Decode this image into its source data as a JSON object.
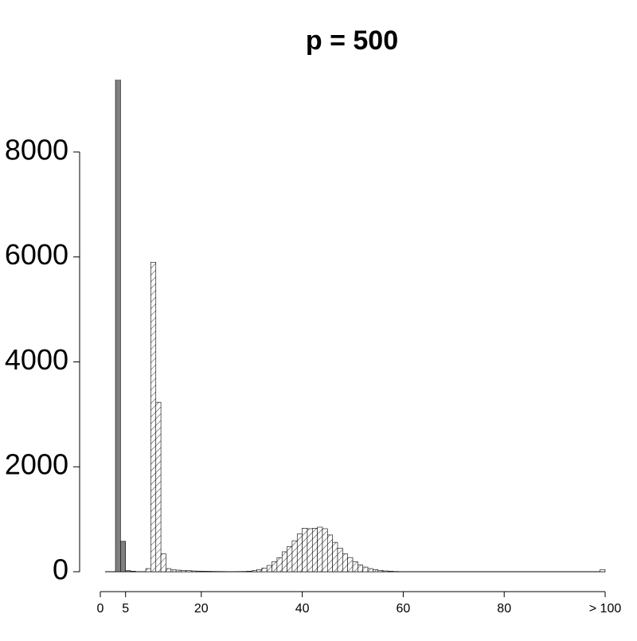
{
  "chart_data": {
    "type": "histogram",
    "title": "p = 500",
    "bins": [
      0,
      1,
      2,
      3,
      4,
      5,
      6,
      7,
      8,
      9,
      10,
      11,
      12,
      13,
      14,
      15,
      16,
      17,
      18,
      19,
      20,
      21,
      22,
      23,
      24,
      25,
      26,
      27,
      28,
      29,
      30,
      31,
      32,
      33,
      34,
      35,
      36,
      37,
      38,
      39,
      40,
      41,
      42,
      43,
      44,
      45,
      46,
      47,
      48,
      49,
      50,
      51,
      52,
      53,
      54,
      55,
      56,
      57,
      58,
      59,
      60,
      61,
      62,
      63,
      64,
      65,
      66,
      67,
      68,
      69,
      70,
      71,
      72,
      73,
      74,
      75,
      76,
      77,
      78,
      79,
      80,
      81,
      82,
      83,
      84,
      85,
      86,
      87,
      88,
      89,
      90,
      91,
      92,
      93,
      94,
      95,
      96,
      97,
      98,
      99,
      100
    ],
    "series": [
      {
        "color": "#808080",
        "hatch": false,
        "values": [
          0,
          0,
          0,
          9500,
          580,
          20,
          10,
          0,
          0,
          0,
          0,
          0,
          0,
          0,
          0,
          0,
          0,
          0,
          0,
          0,
          0,
          0,
          0,
          0,
          0,
          0,
          0,
          0,
          0,
          0,
          0,
          0,
          0,
          0,
          0,
          0,
          0,
          0,
          0,
          0,
          0,
          0,
          0,
          0,
          0,
          0,
          0,
          0,
          0,
          0,
          0,
          0,
          0,
          0,
          0,
          0,
          0,
          0,
          0,
          0,
          0,
          0,
          0,
          0,
          0,
          0,
          0,
          0,
          0,
          0,
          0,
          0,
          0,
          0,
          0,
          0,
          0,
          0,
          0,
          0,
          0,
          0,
          0,
          0,
          0,
          0,
          0,
          0,
          0,
          0,
          0,
          0,
          0,
          0,
          0,
          0,
          0,
          0,
          0,
          0
        ]
      },
      {
        "color": "#ffffff",
        "hatch": true,
        "values": [
          0,
          0,
          0,
          0,
          0,
          0,
          0,
          0,
          0,
          60,
          5900,
          3230,
          340,
          60,
          35,
          30,
          25,
          20,
          15,
          12,
          10,
          8,
          6,
          5,
          4,
          3,
          3,
          4,
          5,
          10,
          20,
          40,
          70,
          120,
          190,
          270,
          380,
          480,
          590,
          720,
          830,
          820,
          830,
          850,
          820,
          700,
          560,
          450,
          340,
          270,
          190,
          130,
          90,
          60,
          40,
          25,
          15,
          10,
          5,
          3,
          2,
          0,
          0,
          0,
          0,
          0,
          0,
          0,
          0,
          0,
          0,
          0,
          0,
          0,
          0,
          0,
          0,
          0,
          0,
          0,
          0,
          0,
          0,
          0,
          0,
          0,
          0,
          0,
          0,
          0,
          0,
          0,
          0,
          0,
          0,
          0,
          0,
          0,
          0,
          40
        ]
      }
    ],
    "xlim": [
      0,
      100
    ],
    "ylim": [
      0,
      9380
    ],
    "xticks": [
      0,
      5,
      20,
      40,
      60,
      80,
      {
        "value": 100,
        "label": "> 100"
      }
    ],
    "yticks": [
      0,
      2000,
      4000,
      6000,
      8000
    ]
  }
}
